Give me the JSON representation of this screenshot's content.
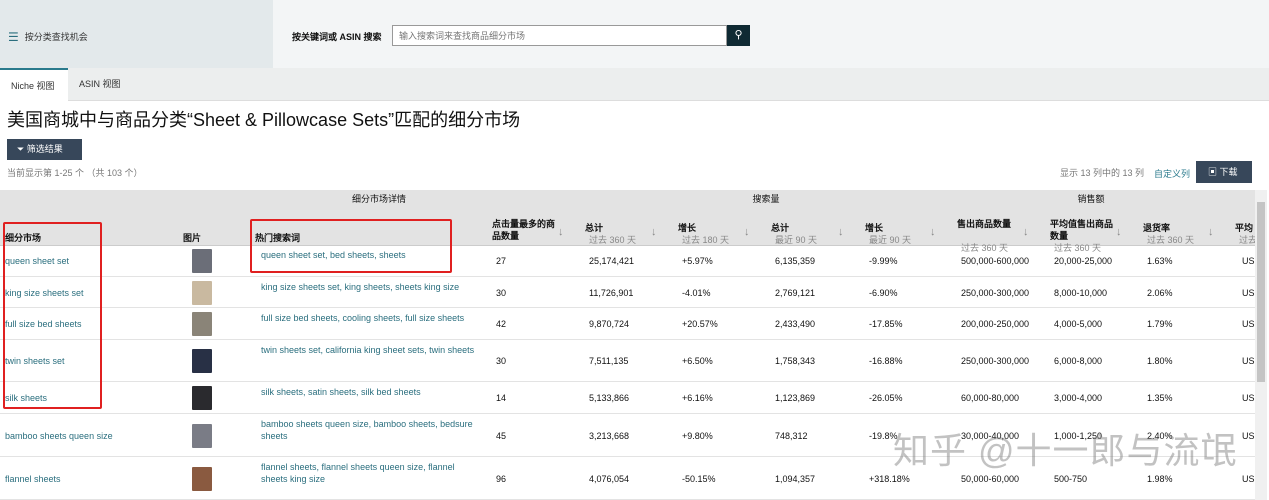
{
  "topbar": {
    "menu_label": "按分类查找机会",
    "menu_icon": "hamburger-icon",
    "search_label": "按关键词或 ASIN 搜索",
    "search_placeholder": "输入搜索词来查找商品细分市场",
    "search_icon": "search-icon"
  },
  "tabs": [
    {
      "label": "Niche 视图",
      "active": true
    },
    {
      "label": "ASIN 视图",
      "active": false
    }
  ],
  "page_title": "美国商城中与商品分类“Sheet & Pillowcase Sets”匹配的细分市场",
  "filter_label": "筛选结果",
  "results_count": "当前显示第 1-25 个 （共 103 个）",
  "columns_shown": "显示 13 列中的 13 列",
  "customize_label": "自定义列",
  "download_label": "下载",
  "groups": [
    "细分市场详情",
    "搜索量",
    "销售额"
  ],
  "columns": [
    {
      "title": "细分市场",
      "sub": ""
    },
    {
      "title": "图片",
      "sub": ""
    },
    {
      "title": "热门搜索词",
      "sub": ""
    },
    {
      "title": "点击量最多的商品数量",
      "sub": ""
    },
    {
      "title": "总计",
      "sub": "过去 360 天"
    },
    {
      "title": "增长",
      "sub": "过去 180 天"
    },
    {
      "title": "总计",
      "sub": "最近 90 天"
    },
    {
      "title": "增长",
      "sub": "最近 90 天"
    },
    {
      "title": "售出商品数量",
      "sub": "过去 360 天"
    },
    {
      "title": "平均值售出商品数量",
      "sub": "过去 360 天"
    },
    {
      "title": "退货率",
      "sub": "过去 360 天"
    },
    {
      "title": "平均",
      "sub": "过去"
    }
  ],
  "rows": [
    {
      "niche": "queen sheet set",
      "terms": "queen sheet set, bed sheets, sheets",
      "clicked": "27",
      "s360": "25,174,421",
      "g180": "+5.97%",
      "s90": "6,135,359",
      "g90": "-9.99%",
      "units": "500,000-600,000",
      "avg": "20,000-25,000",
      "ret": "1.63%",
      "price": "US"
    },
    {
      "niche": "king size sheets set",
      "terms": "king size sheets set, king sheets, sheets king size",
      "clicked": "30",
      "s360": "11,726,901",
      "g180": "-4.01%",
      "s90": "2,769,121",
      "g90": "-6.90%",
      "units": "250,000-300,000",
      "avg": "8,000-10,000",
      "ret": "2.06%",
      "price": "US"
    },
    {
      "niche": "full size bed sheets",
      "terms": "full size bed sheets, cooling sheets, full size sheets",
      "clicked": "42",
      "s360": "9,870,724",
      "g180": "+20.57%",
      "s90": "2,433,490",
      "g90": "-17.85%",
      "units": "200,000-250,000",
      "avg": "4,000-5,000",
      "ret": "1.79%",
      "price": "US"
    },
    {
      "niche": "twin sheets set",
      "terms": "twin sheets set, california king sheet sets, twin sheets",
      "clicked": "30",
      "s360": "7,511,135",
      "g180": "+6.50%",
      "s90": "1,758,343",
      "g90": "-16.88%",
      "units": "250,000-300,000",
      "avg": "6,000-8,000",
      "ret": "1.80%",
      "price": "US"
    },
    {
      "niche": "silk sheets",
      "terms": "silk sheets, satin sheets, silk bed sheets",
      "clicked": "14",
      "s360": "5,133,866",
      "g180": "+6.16%",
      "s90": "1,123,869",
      "g90": "-26.05%",
      "units": "60,000-80,000",
      "avg": "3,000-4,000",
      "ret": "1.35%",
      "price": "US"
    },
    {
      "niche": "bamboo sheets queen size",
      "terms": "bamboo sheets queen size, bamboo sheets, bedsure sheets",
      "clicked": "45",
      "s360": "3,213,668",
      "g180": "+9.80%",
      "s90": "748,312",
      "g90": "-19.8%",
      "units": "30,000-40,000",
      "avg": "1,000-1,250",
      "ret": "2.40%",
      "price": "US"
    },
    {
      "niche": "flannel sheets",
      "terms": "flannel sheets, flannel sheets queen size, flannel sheets king size",
      "clicked": "96",
      "s360": "4,076,054",
      "g180": "-50.15%",
      "s90": "1,094,357",
      "g90": "+318.18%",
      "units": "50,000-60,000",
      "avg": "500-750",
      "ret": "1.98%",
      "price": "US"
    }
  ],
  "thumb_colors": [
    "#6b6e78",
    "#c9b9a0",
    "#8a8478",
    "#283045",
    "#2a2a2e",
    "#7a7c86",
    "#8a5a40"
  ],
  "watermark": "知乎 @十一郎与流氓"
}
